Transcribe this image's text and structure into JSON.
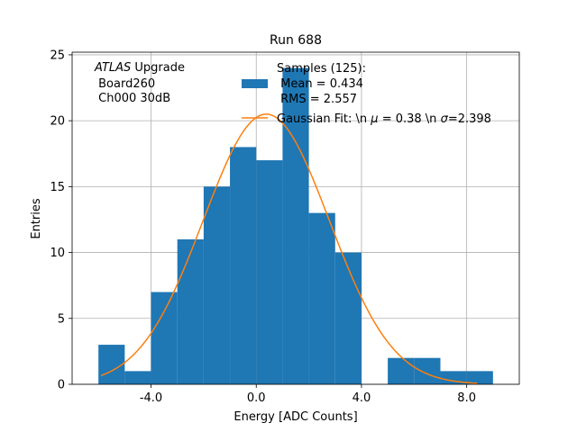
{
  "chart_data": {
    "type": "bar",
    "title": "Run 688",
    "xlabel": "Energy [ADC Counts]",
    "ylabel": "Entries",
    "xlim": [
      -7,
      10
    ],
    "ylim": [
      0,
      25.2
    ],
    "grid": true,
    "x_ticks": [
      {
        "value": -4,
        "label": "-4.0"
      },
      {
        "value": 0,
        "label": "0.0"
      },
      {
        "value": 4,
        "label": "4.0"
      },
      {
        "value": 8,
        "label": "8.0"
      }
    ],
    "y_ticks": [
      {
        "value": 0,
        "label": "0"
      },
      {
        "value": 5,
        "label": "5"
      },
      {
        "value": 10,
        "label": "10"
      },
      {
        "value": 15,
        "label": "15"
      },
      {
        "value": 20,
        "label": "20"
      },
      {
        "value": 25,
        "label": "25"
      }
    ],
    "histogram": {
      "name": "Samples (125):",
      "color": "#1f77b4",
      "bin_edges": [
        -6,
        -5,
        -4,
        -3,
        -2,
        -1,
        0,
        1,
        2,
        3,
        4,
        5,
        6,
        7,
        8,
        9
      ],
      "counts": [
        3,
        1,
        7,
        11,
        15,
        18,
        17,
        24,
        13,
        10,
        0,
        2,
        2,
        1,
        1
      ]
    },
    "fit": {
      "name": "Gaussian Fit: \\n $\\mu$ = 0.38 \\n $\\sigma$=2.398",
      "color": "#ff7f0e",
      "type": "gaussian",
      "mu": 0.38,
      "sigma": 2.398,
      "amplitude": 20.5,
      "x_range": [
        -5.9,
        8.4
      ]
    },
    "legend": {
      "position": "top-right",
      "samples_lines": [
        "Samples (125):",
        " Mean = 0.434",
        " RMS = 2.557"
      ],
      "fit_label": "Gaussian Fit: \\n $\\mu$ = 0.38 \\n $\\sigma$=2.398"
    },
    "annotation": {
      "position": "top-left",
      "atlas": "ATLAS",
      "upgrade": " Upgrade",
      "line2": " Board260",
      "line3": " Ch000 30dB"
    }
  }
}
